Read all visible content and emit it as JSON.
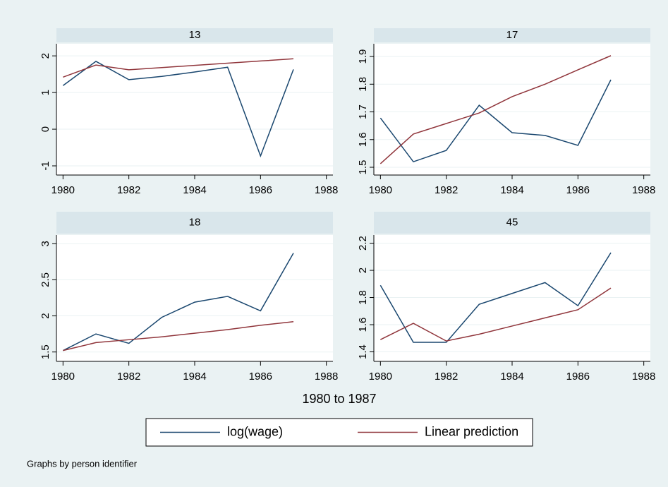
{
  "chart_data": [
    {
      "type": "line",
      "title": "13",
      "x": [
        1980,
        1981,
        1982,
        1983,
        1984,
        1985,
        1986,
        1987
      ],
      "xlim": [
        1979.8,
        1988.2
      ],
      "xticks": [
        1980,
        1982,
        1984,
        1986,
        1988
      ],
      "ylim": [
        -1.25,
        2.33
      ],
      "yticks": [
        -1,
        0,
        1,
        2
      ],
      "grid": true,
      "series": [
        {
          "name": "log(wage)",
          "color": "#1a476f",
          "values": [
            1.19,
            1.85,
            1.35,
            1.44,
            1.56,
            1.69,
            -0.73,
            1.63
          ]
        },
        {
          "name": "Linear prediction",
          "color": "#90353b",
          "values": [
            1.42,
            1.75,
            1.62,
            1.68,
            1.74,
            1.8,
            1.86,
            1.92
          ]
        }
      ]
    },
    {
      "type": "line",
      "title": "17",
      "x": [
        1980,
        1981,
        1982,
        1983,
        1984,
        1985,
        1986,
        1987
      ],
      "xlim": [
        1979.8,
        1988.2
      ],
      "xticks": [
        1980,
        1982,
        1984,
        1986,
        1988
      ],
      "ylim": [
        1.472,
        1.946
      ],
      "yticks": [
        1.5,
        1.6,
        1.7,
        1.8,
        1.9
      ],
      "grid": true,
      "series": [
        {
          "name": "log(wage)",
          "color": "#1a476f",
          "values": [
            1.678,
            1.52,
            1.561,
            1.724,
            1.625,
            1.615,
            1.579,
            1.816
          ]
        },
        {
          "name": "Linear prediction",
          "color": "#90353b",
          "values": [
            1.513,
            1.62,
            1.658,
            1.696,
            1.755,
            1.8,
            1.852,
            1.903
          ]
        }
      ]
    },
    {
      "type": "line",
      "title": "18",
      "x": [
        1980,
        1981,
        1982,
        1983,
        1984,
        1985,
        1986,
        1987
      ],
      "xlim": [
        1979.8,
        1988.2
      ],
      "xticks": [
        1980,
        1982,
        1984,
        1986,
        1988
      ],
      "ylim": [
        1.37,
        3.12
      ],
      "yticks": [
        1.5,
        2,
        2.5,
        3
      ],
      "grid": true,
      "series": [
        {
          "name": "log(wage)",
          "color": "#1a476f",
          "values": [
            1.52,
            1.75,
            1.62,
            1.98,
            2.19,
            2.27,
            2.07,
            2.87
          ]
        },
        {
          "name": "Linear prediction",
          "color": "#90353b",
          "values": [
            1.52,
            1.63,
            1.67,
            1.71,
            1.76,
            1.81,
            1.87,
            1.92
          ]
        }
      ]
    },
    {
      "type": "line",
      "title": "45",
      "x": [
        1980,
        1981,
        1982,
        1983,
        1984,
        1985,
        1986,
        1987
      ],
      "xlim": [
        1979.8,
        1988.2
      ],
      "xticks": [
        1980,
        1982,
        1984,
        1986,
        1988
      ],
      "ylim": [
        1.33,
        2.26
      ],
      "yticks": [
        1.4,
        1.6,
        1.8,
        2,
        2.2
      ],
      "grid": true,
      "series": [
        {
          "name": "log(wage)",
          "color": "#1a476f",
          "values": [
            1.89,
            1.47,
            1.47,
            1.75,
            1.83,
            1.91,
            1.74,
            2.13
          ]
        },
        {
          "name": "Linear prediction",
          "color": "#90353b",
          "values": [
            1.49,
            1.61,
            1.48,
            1.53,
            1.59,
            1.65,
            1.71,
            1.87
          ]
        }
      ]
    }
  ],
  "xlabel": "1980 to 1987",
  "note": "Graphs by person identifier",
  "legend_position": "bottom"
}
